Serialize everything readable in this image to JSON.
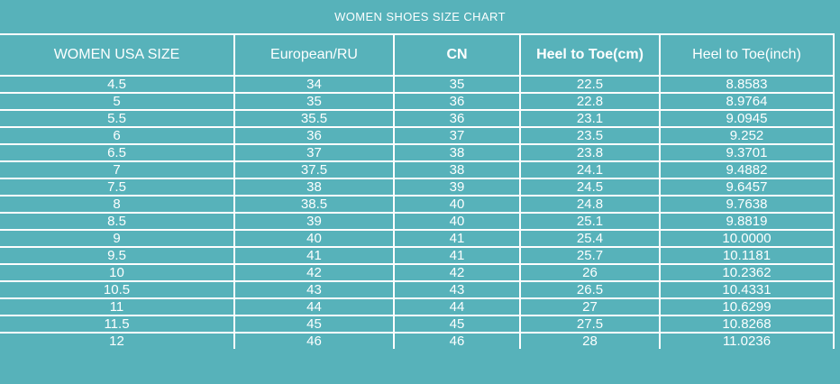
{
  "meta": {
    "bg_color": "#57b2ba",
    "grid_color": "#fefefe",
    "text_color": "#fdffff"
  },
  "title": "WOMEN SHOES SIZE CHART",
  "chart_data": {
    "type": "table",
    "title": "WOMEN SHOES SIZE CHART",
    "columns": [
      "WOMEN USA SIZE",
      "European/RU",
      "CN",
      "Heel to Toe(cm)",
      "Heel to Toe(inch)"
    ],
    "bold_columns": [
      "CN",
      "Heel to Toe(cm)"
    ],
    "rows": [
      [
        "4.5",
        "34",
        "35",
        "22.5",
        "8.8583"
      ],
      [
        "5",
        "35",
        "36",
        "22.8",
        "8.9764"
      ],
      [
        "5.5",
        "35.5",
        "36",
        "23.1",
        "9.0945"
      ],
      [
        "6",
        "36",
        "37",
        "23.5",
        "9.252"
      ],
      [
        "6.5",
        "37",
        "38",
        "23.8",
        "9.3701"
      ],
      [
        "7",
        "37.5",
        "38",
        "24.1",
        "9.4882"
      ],
      [
        "7.5",
        "38",
        "39",
        "24.5",
        "9.6457"
      ],
      [
        "8",
        "38.5",
        "40",
        "24.8",
        "9.7638"
      ],
      [
        "8.5",
        "39",
        "40",
        "25.1",
        "9.8819"
      ],
      [
        "9",
        "40",
        "41",
        "25.4",
        "10.0000"
      ],
      [
        "9.5",
        "41",
        "41",
        "25.7",
        "10.1181"
      ],
      [
        "10",
        "42",
        "42",
        "26",
        "10.2362"
      ],
      [
        "10.5",
        "43",
        "43",
        "26.5",
        "10.4331"
      ],
      [
        "11",
        "44",
        "44",
        "27",
        "10.6299"
      ],
      [
        "11.5",
        "45",
        "45",
        "27.5",
        "10.8268"
      ],
      [
        "12",
        "46",
        "46",
        "28",
        "11.0236"
      ]
    ]
  }
}
